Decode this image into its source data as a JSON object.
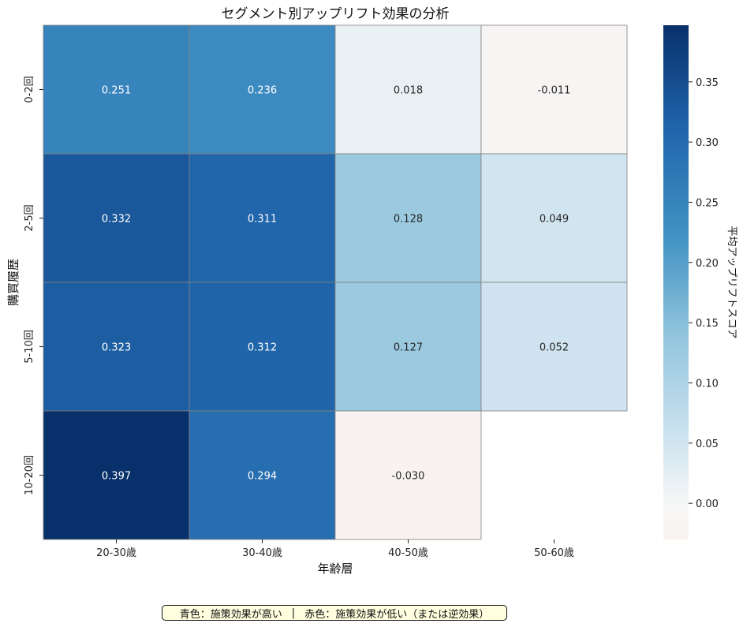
{
  "chart_data": {
    "type": "heatmap",
    "title": "セグメント別アップリフト効果の分析",
    "xlabel": "年齢層",
    "ylabel": "購買履歴",
    "x_categories": [
      "20-30歳",
      "30-40歳",
      "40-50歳",
      "50-60歳"
    ],
    "y_categories": [
      "0-2回",
      "2-5回",
      "5-10回",
      "10-20回"
    ],
    "values": [
      [
        0.251,
        0.236,
        0.018,
        -0.011
      ],
      [
        0.332,
        0.311,
        0.128,
        0.049
      ],
      [
        0.323,
        0.312,
        0.127,
        0.052
      ],
      [
        0.397,
        0.294,
        -0.03,
        null
      ]
    ],
    "value_labels": [
      [
        "0.251",
        "0.236",
        "0.018",
        "-0.011"
      ],
      [
        "0.332",
        "0.311",
        "0.128",
        "0.049"
      ],
      [
        "0.323",
        "0.312",
        "0.127",
        "0.052"
      ],
      [
        "0.397",
        "0.294",
        "-0.030",
        ""
      ]
    ],
    "colormap": "RdBu (diverging, centered at 0)",
    "color_range": [
      -0.03,
      0.397
    ],
    "colorbar": {
      "label": "平均アップリフトスコア",
      "ticks": [
        0.0,
        0.05,
        0.1,
        0.15,
        0.2,
        0.25,
        0.3,
        0.35
      ],
      "tick_labels": [
        "0.00",
        "0.05",
        "0.10",
        "0.15",
        "0.20",
        "0.25",
        "0.30",
        "0.35"
      ]
    },
    "grid": true
  },
  "note": {
    "blue_text": "青色：施策効果が高い",
    "separator": "|",
    "red_text": "赤色：施策効果が低い（または逆効果）"
  }
}
